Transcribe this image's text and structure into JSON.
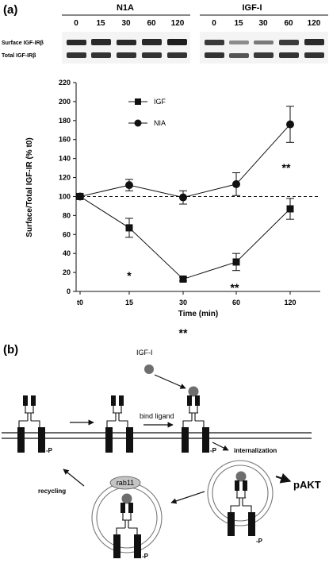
{
  "panel_a": {
    "label": "(a)",
    "blot": {
      "groups": [
        "N1A",
        "IGF-I"
      ],
      "lanes": [
        "0",
        "15",
        "30",
        "60",
        "120"
      ],
      "rows": [
        "Surface IGF-IRβ",
        "Total IGF-IRβ"
      ]
    },
    "stars": [
      "*",
      "**",
      "**",
      "**"
    ]
  },
  "chart_data": {
    "type": "line",
    "x": [
      "t0",
      "15",
      "30",
      "60",
      "120"
    ],
    "xlabel": "Time (min)",
    "ylabel": "Surface/Total IGF-IR (% t0)",
    "ylim": [
      0,
      220
    ],
    "yticks": [
      0,
      20,
      40,
      60,
      80,
      100,
      120,
      140,
      160,
      180,
      200,
      220
    ],
    "reference_line": 100,
    "grid": false,
    "legend": "top-left",
    "series": [
      {
        "name": "IGF",
        "marker": "square",
        "values": [
          100,
          67,
          13,
          31,
          87
        ],
        "errors": [
          0,
          10,
          2,
          9,
          11
        ]
      },
      {
        "name": "NIA",
        "marker": "circle",
        "values": [
          100,
          112,
          99,
          113,
          176
        ],
        "errors": [
          0,
          6,
          7,
          12,
          19
        ]
      }
    ]
  },
  "panel_b": {
    "label": "(b)",
    "ligand": "IGF-I",
    "bind": "bind ligand",
    "internalization": "internalization",
    "recycling": "recycling",
    "rab": "rab11",
    "pakt": "pAKT",
    "phospho": "-P"
  },
  "colors": {
    "ink": "#111111",
    "ligand": "#6e6e6e",
    "rab": "#c4c4c4"
  }
}
